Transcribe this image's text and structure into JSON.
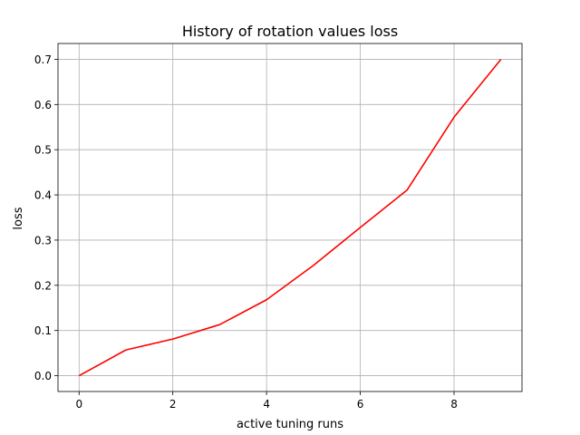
{
  "chart_data": {
    "type": "line",
    "title": "History of rotation values loss",
    "xlabel": "active tuning runs",
    "ylabel": "loss",
    "xlim": [
      -0.45,
      9.45
    ],
    "ylim": [
      -0.035,
      0.735
    ],
    "xticks": [
      0,
      2,
      4,
      6,
      8
    ],
    "yticks": [
      0.0,
      0.1,
      0.2,
      0.3,
      0.4,
      0.5,
      0.6,
      0.7
    ],
    "xtick_labels": [
      "0",
      "2",
      "4",
      "6",
      "8"
    ],
    "ytick_labels": [
      "0.0",
      "0.1",
      "0.2",
      "0.3",
      "0.4",
      "0.5",
      "0.6",
      "0.7"
    ],
    "grid": true,
    "legend": "none",
    "series": [
      {
        "color": "#ff0000",
        "x": [
          0,
          1,
          2,
          3,
          4,
          5,
          6,
          7,
          8,
          9
        ],
        "values": [
          0.0,
          0.057,
          0.081,
          0.113,
          0.168,
          0.244,
          0.328,
          0.411,
          0.572,
          0.7
        ]
      }
    ]
  }
}
